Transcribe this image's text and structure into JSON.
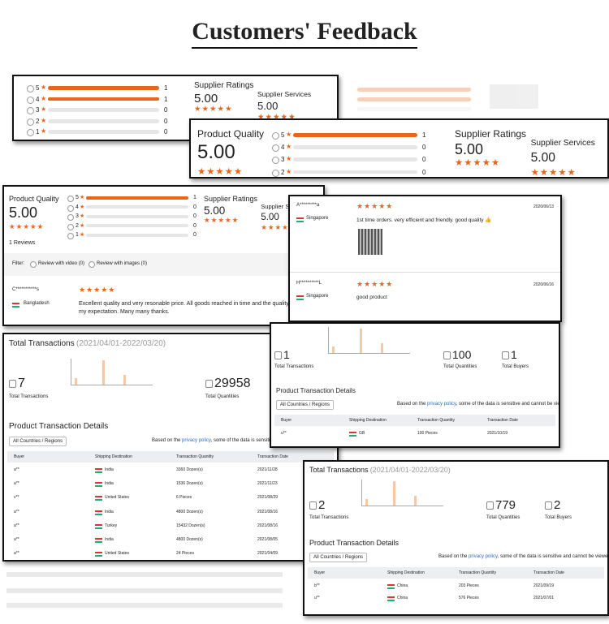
{
  "title": "Customers' Feedback",
  "rating_panel_1": {
    "breakdown": [
      {
        "stars": 5,
        "count": 1
      },
      {
        "stars": 4,
        "count": 1
      },
      {
        "stars": 3,
        "count": 0
      },
      {
        "stars": 2,
        "count": 0
      },
      {
        "stars": 1,
        "count": 0
      }
    ],
    "supplier_ratings_label": "Supplier Ratings",
    "supplier_ratings": "5.00",
    "supplier_services_label": "Supplier Services",
    "supplier_services": "5.00"
  },
  "rating_panel_2": {
    "product_quality_label": "Product Quality",
    "product_quality": "5.00",
    "breakdown": [
      {
        "stars": 5,
        "count": 1
      },
      {
        "stars": 4,
        "count": 0
      },
      {
        "stars": 3,
        "count": 0
      },
      {
        "stars": 2,
        "count": 0
      }
    ],
    "supplier_ratings_label": "Supplier Ratings",
    "supplier_ratings": "5.00",
    "supplier_services_label": "Supplier Services",
    "supplier_services": "5.00"
  },
  "review_panel": {
    "product_quality_label": "Product Quality",
    "product_quality": "5.00",
    "breakdown": [
      {
        "stars": 5,
        "count": 1
      },
      {
        "stars": 4,
        "count": 0
      },
      {
        "stars": 3,
        "count": 0
      },
      {
        "stars": 2,
        "count": 0
      },
      {
        "stars": 1,
        "count": 0
      }
    ],
    "supplier_ratings_label": "Supplier Ratings",
    "supplier_ratings": "5.00",
    "supplier_services_label": "Supplier Services",
    "supplier_services": "5.00",
    "review_count": "1 Reviews",
    "filter_label": "Filter:",
    "filters": [
      "Review with video (0)",
      "Review with images (0)"
    ],
    "review": {
      "reviewer": "C***********s",
      "country": "Bangladesh",
      "text": "Excellent quality and very resonable price. All goods reached in time and the quality was beyond my expectation. Many many thanks."
    }
  },
  "reviews_panel": {
    "reviews": [
      {
        "reviewer": "A*********a",
        "country": "Singapore",
        "text": "1st time orders. very efficient and friendly. good quality 👍",
        "date": "2020/06/13"
      },
      {
        "reviewer": "H**********L",
        "country": "Singapore",
        "text": "good product",
        "date": "2020/06/16"
      }
    ]
  },
  "transactions_1": {
    "title": "Total Transactions",
    "period": "(2021/04/01-2022/03/20)",
    "stats": [
      {
        "value": 7,
        "label": "Total Transactions"
      },
      {
        "value": 29958,
        "label": "Total Quantities"
      }
    ],
    "details_title": "Product Transaction Details",
    "region_filter": "All Countries / Regions",
    "privacy_before": "Based on the ",
    "privacy_link": "privacy policy",
    "privacy_after": ", some of the data is sensitive and cannot be viewed.",
    "columns": [
      "Buyer",
      "Shipping Destination",
      "Transaction Quantity",
      "Transaction Date"
    ],
    "rows": [
      [
        "a**",
        "India",
        "3360 Dozen(s)",
        "2021/11/28"
      ],
      [
        "a**",
        "India",
        "1536 Dozen(s)",
        "2021/11/23"
      ],
      [
        "v**",
        "United States",
        "6 Pieces",
        "2021/08/29"
      ],
      [
        "a**",
        "India",
        "4800 Dozen(s)",
        "2021/08/16"
      ],
      [
        "a**",
        "Turkey",
        "15432 Dozen(s)",
        "2021/08/16"
      ],
      [
        "a**",
        "India",
        "4800 Dozen(s)",
        "2021/08/05"
      ],
      [
        "a**",
        "United States",
        "24 Pieces",
        "2021/04/09"
      ]
    ]
  },
  "transactions_2": {
    "stats": [
      {
        "value": 1,
        "label": "Total Transactions"
      },
      {
        "value": 100,
        "label": "Total Quantities"
      },
      {
        "value": 1,
        "label": "Total Buyers"
      }
    ],
    "details_title": "Product Transaction Details",
    "region_filter": "All Countries / Regions",
    "privacy_before": "Based on the ",
    "privacy_link": "privacy policy",
    "privacy_after": ", some of the data is sensitive and cannot be viewed.",
    "columns": [
      "Buyer",
      "Shipping Destination",
      "Transaction Quantity",
      "Transaction Date"
    ],
    "rows": [
      [
        "u**",
        "GB",
        "100 Pieces",
        "2021/10/19"
      ]
    ]
  },
  "transactions_3": {
    "title": "Total Transactions",
    "period": "(2021/04/01-2022/03/20)",
    "stats": [
      {
        "value": 2,
        "label": "Total Transactions"
      },
      {
        "value": 779,
        "label": "Total Quantities"
      },
      {
        "value": 2,
        "label": "Total Buyers"
      }
    ],
    "details_title": "Product Transaction Details",
    "region_filter": "All Countries / Regions",
    "privacy_before": "Based on the ",
    "privacy_link": "privacy policy",
    "privacy_after": ", some of the data is sensitive and cannot be viewed.",
    "columns": [
      "Buyer",
      "Shipping Destination",
      "Transaction Quantity",
      "Transaction Date"
    ],
    "rows": [
      [
        "b**",
        "China",
        "203 Pieces",
        "2021/09/19"
      ],
      [
        "u**",
        "China",
        "576 Pieces",
        "2021/07/01"
      ]
    ]
  }
}
